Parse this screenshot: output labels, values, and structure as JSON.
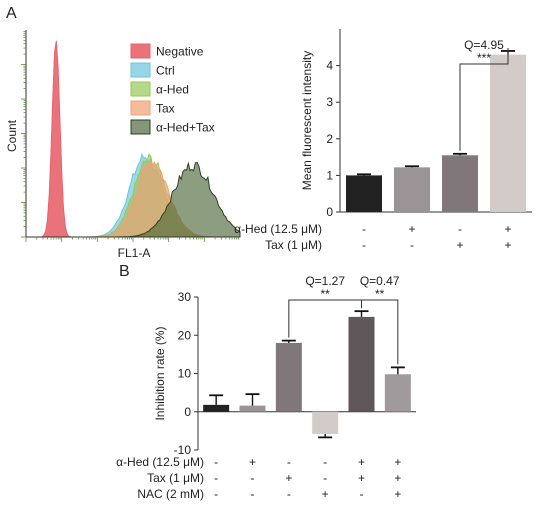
{
  "chart_data": [
    {
      "type": "area",
      "panel_label": "A",
      "xlabel": "FL1-A",
      "ylabel": "Count",
      "series": [
        {
          "name": "Negative",
          "color": "#e8636b",
          "peak_fl1": 0.14,
          "spread": 0.018,
          "height": 1.0
        },
        {
          "name": "Ctrl",
          "color": "#6cc3dc",
          "peak_fl1": 0.55,
          "spread": 0.07,
          "height": 0.38
        },
        {
          "name": "α-Hed",
          "color": "#96c85a",
          "peak_fl1": 0.57,
          "spread": 0.07,
          "height": 0.37
        },
        {
          "name": "Tax",
          "color": "#f0a070",
          "peak_fl1": 0.58,
          "spread": 0.07,
          "height": 0.36
        },
        {
          "name": "α-Hed+Tax",
          "color": "#4f6a3a",
          "peak_fl1": 0.77,
          "spread": 0.09,
          "height": 0.33
        }
      ]
    },
    {
      "type": "bar",
      "ylabel": "Mean fluorescent intensity",
      "ylim": [
        0,
        5
      ],
      "yticks": [
        0,
        1,
        2,
        3,
        4
      ],
      "values": [
        1.0,
        1.22,
        1.55,
        4.3
      ],
      "errors": [
        0.03,
        0.03,
        0.04,
        0.1
      ],
      "colors": [
        "#222222",
        "#9a9497",
        "#7f7779",
        "#d3cbc8"
      ],
      "conditions": [
        {
          "label": "α-Hed (12.5 μM)",
          "marks": [
            "-",
            "+",
            "-",
            "+"
          ]
        },
        {
          "label": "Tax (1 μM)",
          "marks": [
            "-",
            "-",
            "+",
            "+"
          ]
        }
      ],
      "annotations": [
        {
          "from": 2,
          "to": 3,
          "q": "Q=4.95",
          "sig": "***"
        }
      ]
    },
    {
      "type": "bar",
      "panel_label": "B",
      "ylabel": "Inhibition rate (%)",
      "ylim": [
        -10,
        30
      ],
      "yticks": [
        -10,
        0,
        10,
        20,
        30
      ],
      "values": [
        1.8,
        1.6,
        18.0,
        -5.8,
        24.8,
        9.8
      ],
      "errors": [
        2.5,
        3.0,
        0.6,
        0.9,
        1.5,
        1.8
      ],
      "colors": [
        "#222222",
        "#9a9497",
        "#7f7779",
        "#d3cbc8",
        "#5f5759",
        "#a19a9d"
      ],
      "conditions": [
        {
          "label": "α-Hed (12.5 μM)",
          "marks": [
            "-",
            "+",
            "-",
            "-",
            "+",
            "+"
          ]
        },
        {
          "label": "Tax (1 μM)",
          "marks": [
            "-",
            "-",
            "+",
            "-",
            "+",
            "+"
          ]
        },
        {
          "label": "NAC (2 mM)",
          "marks": [
            "-",
            "-",
            "-",
            "+",
            "-",
            "+"
          ]
        }
      ],
      "annotations": [
        {
          "from": 2,
          "to": 4,
          "q": "Q=1.27",
          "sig": "**"
        },
        {
          "from": 4,
          "to": 5,
          "q": "Q=0.47",
          "sig": "**"
        }
      ]
    }
  ]
}
